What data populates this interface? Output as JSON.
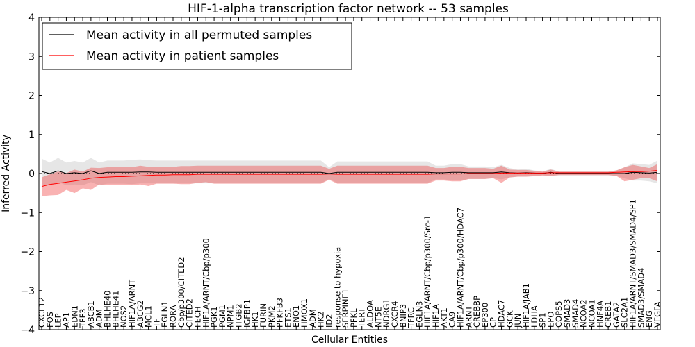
{
  "chart_data": {
    "type": "line",
    "title": "HIF-1-alpha transcription factor network -- 53 samples",
    "xlabel": "Cellular Entities",
    "ylabel": "Inferred Activity",
    "ylim": [
      -4,
      4
    ],
    "yticks": [
      -4,
      -3,
      -2,
      -1,
      0,
      1,
      2,
      3,
      4
    ],
    "grid": false,
    "legend_position": "top-left",
    "categories": [
      "CXCL12",
      "FOS",
      "LEP",
      "AP1",
      "EDN1",
      "TFF3",
      "ABCB1",
      "ADM",
      "BHLHE40",
      "BHLHE41",
      "NOS2",
      "HIF1A/ARNT",
      "ABCG2",
      "MCL1",
      "TF",
      "EGLN1",
      "RORA",
      "Cbp/p300/CITED2",
      "CITED2",
      "FECH",
      "HIF1A/ARNT/Cbp/p300",
      "PGK1",
      "PGM1",
      "NPM1",
      "ITGB2",
      "IGFBP1",
      "HK1",
      "FURIN",
      "PKM2",
      "PFKFB3",
      "ETS1",
      "ENO1",
      "HMOX1",
      "ADM",
      "HK2",
      "ID2",
      "response to hypoxia",
      "SERPINE1",
      "PFKL",
      "TERT",
      "ALDOA",
      "NT5E",
      "NDRG1",
      "CXCR4",
      "BNIP3",
      "TFRC",
      "EGLN3",
      "HIF1A/ARNT/Cbp/p300/Src-1",
      "HIF1A",
      "AKT1",
      "CA9",
      "HIF1A/ARNT/Cbp/p300/HDAC7",
      "ARNT",
      "CREBBP",
      "EP300",
      "CP",
      "HDAC7",
      "GCK",
      "JUN",
      "HIF1A/JAB1",
      "LDHA",
      "SP1",
      "EPO",
      "COPS5",
      "SMAD3",
      "SMAD4",
      "NCOA2",
      "NCOA1",
      "HNF4A",
      "CREB1",
      "GATA2",
      "SLC2A1",
      "HIF1A/ARNT/SMAD3/SMAD4/SP1",
      "SMAD3/SMAD4",
      "ENG",
      "VEGFA"
    ],
    "series": [
      {
        "name": "Mean activity in all permuted samples",
        "color": "#000000",
        "values": [
          0.05,
          0.0,
          0.07,
          0.0,
          0.02,
          0.0,
          0.07,
          0.0,
          0.03,
          0.03,
          0.03,
          0.03,
          0.04,
          0.04,
          0.03,
          0.03,
          0.03,
          0.03,
          0.03,
          0.03,
          0.03,
          0.03,
          0.03,
          0.03,
          0.03,
          0.03,
          0.03,
          0.03,
          0.03,
          0.03,
          0.03,
          0.03,
          0.03,
          0.03,
          0.03,
          0.0,
          0.03,
          0.03,
          0.03,
          0.03,
          0.03,
          0.03,
          0.03,
          0.03,
          0.03,
          0.03,
          0.03,
          0.03,
          0.02,
          0.02,
          0.03,
          0.03,
          0.02,
          0.02,
          0.02,
          0.02,
          0.04,
          0.02,
          0.01,
          0.02,
          0.01,
          0.0,
          0.03,
          0.0,
          0.0,
          0.0,
          0.0,
          0.0,
          0.0,
          0.0,
          0.0,
          0.0,
          0.03,
          0.02,
          0.01,
          0.03
        ],
        "band_low": [
          -0.28,
          -0.3,
          -0.22,
          -0.3,
          -0.28,
          -0.3,
          -0.22,
          -0.3,
          -0.26,
          -0.26,
          -0.26,
          -0.27,
          -0.25,
          -0.25,
          -0.25,
          -0.25,
          -0.25,
          -0.25,
          -0.25,
          -0.25,
          -0.25,
          -0.25,
          -0.25,
          -0.25,
          -0.25,
          -0.25,
          -0.25,
          -0.25,
          -0.25,
          -0.25,
          -0.25,
          -0.25,
          -0.25,
          -0.25,
          -0.25,
          -0.14,
          -0.24,
          -0.24,
          -0.24,
          -0.24,
          -0.24,
          -0.24,
          -0.24,
          -0.24,
          -0.24,
          -0.24,
          -0.24,
          -0.24,
          -0.15,
          -0.15,
          -0.18,
          -0.18,
          -0.14,
          -0.14,
          -0.14,
          -0.12,
          -0.15,
          -0.1,
          -0.08,
          -0.08,
          -0.06,
          -0.05,
          -0.06,
          -0.05,
          -0.05,
          -0.05,
          -0.05,
          -0.05,
          -0.05,
          -0.05,
          -0.06,
          -0.12,
          -0.18,
          -0.18,
          -0.2,
          -0.25
        ],
        "band_high": [
          0.38,
          0.28,
          0.4,
          0.28,
          0.32,
          0.28,
          0.4,
          0.28,
          0.33,
          0.33,
          0.33,
          0.35,
          0.36,
          0.34,
          0.33,
          0.33,
          0.33,
          0.33,
          0.33,
          0.33,
          0.33,
          0.33,
          0.33,
          0.33,
          0.33,
          0.33,
          0.33,
          0.33,
          0.33,
          0.33,
          0.33,
          0.33,
          0.33,
          0.33,
          0.33,
          0.16,
          0.31,
          0.31,
          0.31,
          0.31,
          0.31,
          0.31,
          0.31,
          0.31,
          0.31,
          0.31,
          0.31,
          0.31,
          0.2,
          0.2,
          0.24,
          0.24,
          0.18,
          0.18,
          0.18,
          0.16,
          0.22,
          0.14,
          0.1,
          0.12,
          0.08,
          0.05,
          0.12,
          0.05,
          0.05,
          0.05,
          0.05,
          0.05,
          0.05,
          0.05,
          0.08,
          0.16,
          0.26,
          0.24,
          0.22,
          0.33
        ]
      },
      {
        "name": "Mean activity in patient samples",
        "color": "#ff0000",
        "values": [
          -0.33,
          -0.28,
          -0.25,
          -0.22,
          -0.19,
          -0.16,
          -0.12,
          -0.1,
          -0.09,
          -0.08,
          -0.08,
          -0.07,
          -0.06,
          -0.05,
          -0.04,
          -0.04,
          -0.03,
          -0.03,
          -0.03,
          -0.02,
          -0.02,
          -0.02,
          -0.02,
          -0.02,
          -0.02,
          -0.02,
          -0.02,
          -0.02,
          -0.02,
          -0.02,
          -0.02,
          -0.02,
          -0.02,
          -0.02,
          -0.02,
          -0.01,
          -0.02,
          -0.02,
          -0.02,
          -0.02,
          -0.02,
          -0.02,
          -0.02,
          -0.02,
          -0.02,
          -0.02,
          -0.02,
          -0.02,
          -0.01,
          -0.01,
          -0.01,
          -0.01,
          0.0,
          0.0,
          0.0,
          0.0,
          0.01,
          0.01,
          0.01,
          0.01,
          0.01,
          0.01,
          0.02,
          0.02,
          0.02,
          0.02,
          0.02,
          0.02,
          0.02,
          0.02,
          0.03,
          0.04,
          0.05,
          0.05,
          0.06,
          0.08
        ],
        "band_low": [
          -0.58,
          -0.56,
          -0.55,
          -0.42,
          -0.5,
          -0.38,
          -0.42,
          -0.28,
          -0.3,
          -0.3,
          -0.3,
          -0.3,
          -0.28,
          -0.32,
          -0.26,
          -0.26,
          -0.26,
          -0.27,
          -0.27,
          -0.24,
          -0.22,
          -0.26,
          -0.26,
          -0.26,
          -0.26,
          -0.26,
          -0.26,
          -0.26,
          -0.26,
          -0.26,
          -0.26,
          -0.26,
          -0.26,
          -0.26,
          -0.26,
          -0.16,
          -0.26,
          -0.26,
          -0.26,
          -0.26,
          -0.26,
          -0.26,
          -0.26,
          -0.26,
          -0.26,
          -0.26,
          -0.26,
          -0.26,
          -0.18,
          -0.18,
          -0.2,
          -0.2,
          -0.14,
          -0.14,
          -0.14,
          -0.12,
          -0.24,
          -0.1,
          -0.08,
          -0.08,
          -0.07,
          -0.05,
          -0.06,
          -0.04,
          -0.04,
          -0.04,
          -0.04,
          -0.04,
          -0.04,
          -0.04,
          -0.06,
          -0.2,
          -0.16,
          -0.12,
          -0.12,
          -0.2
        ],
        "band_high": [
          -0.1,
          -0.02,
          0.05,
          0.01,
          0.1,
          0.05,
          0.15,
          0.14,
          0.16,
          0.16,
          0.16,
          0.16,
          0.2,
          0.17,
          0.17,
          0.17,
          0.17,
          0.19,
          0.19,
          0.2,
          0.2,
          0.2,
          0.2,
          0.2,
          0.2,
          0.2,
          0.2,
          0.2,
          0.2,
          0.2,
          0.2,
          0.2,
          0.2,
          0.2,
          0.2,
          0.12,
          0.2,
          0.2,
          0.2,
          0.2,
          0.2,
          0.2,
          0.2,
          0.2,
          0.2,
          0.2,
          0.2,
          0.2,
          0.14,
          0.14,
          0.17,
          0.17,
          0.14,
          0.14,
          0.14,
          0.12,
          0.2,
          0.1,
          0.09,
          0.09,
          0.07,
          0.05,
          0.1,
          0.05,
          0.05,
          0.05,
          0.05,
          0.05,
          0.05,
          0.05,
          0.08,
          0.16,
          0.22,
          0.18,
          0.14,
          0.24
        ]
      }
    ],
    "reference_line": {
      "y": 0,
      "style": "dotted"
    }
  }
}
